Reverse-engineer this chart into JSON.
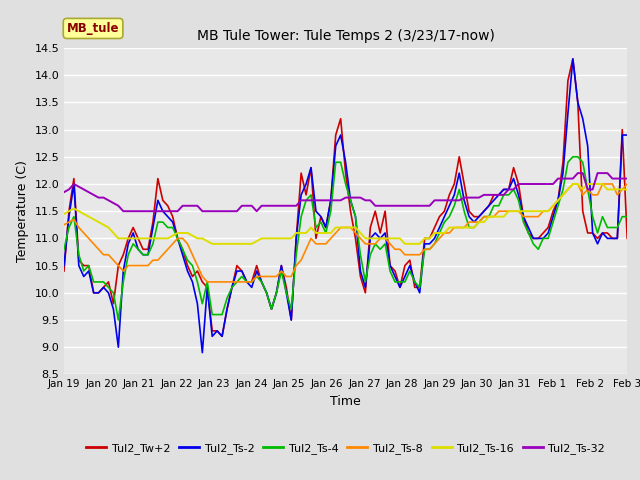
{
  "title": "MB Tule Tower: Tule Temps 2 (3/23/17-now)",
  "xlabel": "Time",
  "ylabel": "Temperature (C)",
  "ylim": [
    8.5,
    14.5
  ],
  "xlim": [
    0,
    15
  ],
  "background_color": "#e0e0e0",
  "plot_bg_color": "#e8e8e8",
  "grid_color": "#ffffff",
  "x_tick_labels": [
    "Jan 19",
    "Jan 20",
    "Jan 21",
    "Jan 22",
    "Jan 23",
    "Jan 24",
    "Jan 25",
    "Jan 26",
    "Jan 27",
    "Jan 28",
    "Jan 29",
    "Jan 30",
    "Jan 31",
    "Feb 1",
    "Feb 2",
    "Feb 3"
  ],
  "legend_label": "MB_tule",
  "series": [
    {
      "name": "Tul2_Tw+2",
      "color": "#cc0000",
      "lw": 1.2,
      "values": [
        10.4,
        11.5,
        12.1,
        10.6,
        10.5,
        10.5,
        10.0,
        10.0,
        10.1,
        10.2,
        9.8,
        10.5,
        10.7,
        11.0,
        11.2,
        11.0,
        10.8,
        10.8,
        11.3,
        12.1,
        11.7,
        11.6,
        11.4,
        11.0,
        10.8,
        10.5,
        10.3,
        10.4,
        10.2,
        10.1,
        9.3,
        9.3,
        9.2,
        9.7,
        10.1,
        10.5,
        10.4,
        10.2,
        10.2,
        10.5,
        10.2,
        10.0,
        9.7,
        10.0,
        10.5,
        10.1,
        9.5,
        11.0,
        12.2,
        11.8,
        12.3,
        11.0,
        11.4,
        11.2,
        11.7,
        12.9,
        13.2,
        12.2,
        11.5,
        11.0,
        10.3,
        10.0,
        11.2,
        11.5,
        11.1,
        11.5,
        10.5,
        10.4,
        10.1,
        10.5,
        10.6,
        10.1,
        10.1,
        11.0,
        11.0,
        11.2,
        11.4,
        11.5,
        11.8,
        12.0,
        12.5,
        12.0,
        11.5,
        11.4,
        11.4,
        11.5,
        11.6,
        11.8,
        11.8,
        11.9,
        11.9,
        12.3,
        12.0,
        11.4,
        11.1,
        11.0,
        11.0,
        11.1,
        11.2,
        11.5,
        11.7,
        12.4,
        13.9,
        14.3,
        13.5,
        11.5,
        11.1,
        11.1,
        11.0,
        11.1,
        11.1,
        11.0,
        11.0,
        13.0,
        11.0
      ]
    },
    {
      "name": "Tul2_Ts-2",
      "color": "#0000ee",
      "lw": 1.2,
      "values": [
        10.5,
        11.4,
        12.0,
        10.5,
        10.3,
        10.4,
        10.0,
        10.0,
        10.1,
        10.0,
        9.7,
        9.0,
        10.4,
        10.9,
        11.1,
        10.8,
        10.7,
        10.7,
        11.2,
        11.7,
        11.5,
        11.4,
        11.3,
        11.0,
        10.7,
        10.4,
        10.2,
        9.8,
        8.9,
        10.1,
        9.2,
        9.3,
        9.2,
        9.7,
        10.1,
        10.4,
        10.4,
        10.2,
        10.1,
        10.4,
        10.2,
        10.0,
        9.7,
        10.0,
        10.5,
        10.0,
        9.5,
        11.0,
        11.8,
        12.0,
        12.3,
        11.5,
        11.4,
        11.2,
        11.7,
        12.7,
        12.9,
        12.4,
        11.7,
        11.4,
        10.4,
        10.1,
        11.0,
        11.1,
        11.0,
        11.1,
        10.5,
        10.3,
        10.1,
        10.3,
        10.5,
        10.2,
        10.0,
        10.9,
        10.9,
        11.0,
        11.2,
        11.4,
        11.6,
        11.8,
        12.2,
        11.7,
        11.4,
        11.3,
        11.4,
        11.5,
        11.6,
        11.7,
        11.8,
        11.9,
        11.9,
        12.1,
        11.8,
        11.4,
        11.2,
        11.0,
        11.0,
        11.0,
        11.1,
        11.4,
        11.7,
        12.2,
        13.3,
        14.3,
        13.5,
        13.2,
        12.7,
        11.1,
        10.9,
        11.1,
        11.0,
        11.0,
        11.0,
        12.9,
        12.9
      ]
    },
    {
      "name": "Tul2_Ts-4",
      "color": "#00bb00",
      "lw": 1.2,
      "values": [
        10.8,
        11.2,
        11.4,
        10.7,
        10.4,
        10.5,
        10.2,
        10.2,
        10.2,
        10.1,
        10.0,
        9.5,
        10.2,
        10.7,
        10.9,
        10.8,
        10.7,
        10.7,
        10.9,
        11.3,
        11.3,
        11.2,
        11.2,
        11.0,
        10.8,
        10.6,
        10.5,
        10.2,
        9.8,
        10.2,
        9.6,
        9.6,
        9.6,
        9.9,
        10.1,
        10.2,
        10.3,
        10.2,
        10.2,
        10.3,
        10.2,
        10.0,
        9.7,
        10.0,
        10.4,
        10.0,
        9.7,
        10.7,
        11.4,
        11.7,
        11.8,
        11.2,
        11.3,
        11.1,
        11.5,
        12.4,
        12.4,
        12.0,
        11.7,
        11.4,
        10.7,
        10.2,
        10.7,
        10.9,
        10.8,
        10.9,
        10.4,
        10.2,
        10.2,
        10.2,
        10.4,
        10.2,
        10.1,
        10.8,
        10.8,
        10.9,
        11.1,
        11.3,
        11.4,
        11.6,
        11.9,
        11.5,
        11.2,
        11.2,
        11.3,
        11.4,
        11.4,
        11.6,
        11.6,
        11.8,
        11.8,
        11.9,
        11.7,
        11.3,
        11.1,
        10.9,
        10.8,
        11.0,
        11.0,
        11.3,
        11.6,
        11.9,
        12.4,
        12.5,
        12.5,
        12.4,
        11.9,
        11.4,
        11.1,
        11.4,
        11.2,
        11.2,
        11.2,
        11.4,
        11.4
      ]
    },
    {
      "name": "Tul2_Ts-8",
      "color": "#ff8800",
      "lw": 1.2,
      "values": [
        11.25,
        11.3,
        11.35,
        11.2,
        11.1,
        11.0,
        10.9,
        10.8,
        10.7,
        10.7,
        10.6,
        10.5,
        10.4,
        10.5,
        10.5,
        10.5,
        10.5,
        10.5,
        10.6,
        10.6,
        10.7,
        10.8,
        10.9,
        11.0,
        11.0,
        10.9,
        10.7,
        10.5,
        10.3,
        10.2,
        10.2,
        10.2,
        10.2,
        10.2,
        10.2,
        10.2,
        10.2,
        10.2,
        10.2,
        10.3,
        10.3,
        10.3,
        10.3,
        10.3,
        10.4,
        10.3,
        10.3,
        10.5,
        10.6,
        10.8,
        11.0,
        10.9,
        10.9,
        10.9,
        11.0,
        11.1,
        11.2,
        11.2,
        11.2,
        11.1,
        11.0,
        10.9,
        10.9,
        10.9,
        11.0,
        11.0,
        10.9,
        10.8,
        10.8,
        10.7,
        10.7,
        10.7,
        10.7,
        10.8,
        10.8,
        10.9,
        11.0,
        11.1,
        11.1,
        11.2,
        11.2,
        11.2,
        11.3,
        11.3,
        11.3,
        11.4,
        11.4,
        11.4,
        11.5,
        11.5,
        11.5,
        11.5,
        11.5,
        11.4,
        11.4,
        11.4,
        11.4,
        11.5,
        11.5,
        11.6,
        11.7,
        11.8,
        11.9,
        12.0,
        12.0,
        11.8,
        11.9,
        11.8,
        11.8,
        12.0,
        12.0,
        12.0,
        11.8,
        11.9,
        12.0
      ]
    },
    {
      "name": "Tul2_Ts-16",
      "color": "#dddd00",
      "lw": 1.4,
      "values": [
        11.45,
        11.5,
        11.55,
        11.5,
        11.45,
        11.4,
        11.35,
        11.3,
        11.25,
        11.2,
        11.1,
        11.0,
        11.0,
        11.0,
        11.0,
        11.0,
        11.0,
        11.0,
        11.0,
        11.0,
        11.0,
        11.0,
        11.05,
        11.1,
        11.1,
        11.1,
        11.05,
        11.0,
        11.0,
        10.95,
        10.9,
        10.9,
        10.9,
        10.9,
        10.9,
        10.9,
        10.9,
        10.9,
        10.9,
        10.95,
        11.0,
        11.0,
        11.0,
        11.0,
        11.0,
        11.0,
        11.0,
        11.1,
        11.1,
        11.1,
        11.2,
        11.1,
        11.1,
        11.1,
        11.1,
        11.2,
        11.2,
        11.2,
        11.2,
        11.2,
        11.1,
        11.0,
        11.0,
        11.0,
        11.0,
        11.0,
        11.0,
        11.0,
        11.0,
        10.9,
        10.9,
        10.9,
        10.9,
        11.0,
        11.0,
        11.1,
        11.1,
        11.1,
        11.2,
        11.2,
        11.2,
        11.2,
        11.2,
        11.2,
        11.3,
        11.3,
        11.4,
        11.4,
        11.4,
        11.4,
        11.5,
        11.5,
        11.5,
        11.5,
        11.5,
        11.5,
        11.5,
        11.5,
        11.5,
        11.6,
        11.7,
        11.8,
        11.9,
        12.0,
        12.0,
        11.9,
        12.0,
        12.0,
        12.0,
        12.0,
        11.9,
        11.9,
        11.9,
        11.9,
        11.9
      ]
    },
    {
      "name": "Tul2_Ts-32",
      "color": "#9900bb",
      "lw": 1.4,
      "values": [
        11.85,
        11.9,
        12.0,
        11.95,
        11.9,
        11.85,
        11.8,
        11.75,
        11.75,
        11.7,
        11.65,
        11.6,
        11.5,
        11.5,
        11.5,
        11.5,
        11.5,
        11.5,
        11.5,
        11.5,
        11.5,
        11.5,
        11.5,
        11.5,
        11.6,
        11.6,
        11.6,
        11.6,
        11.5,
        11.5,
        11.5,
        11.5,
        11.5,
        11.5,
        11.5,
        11.5,
        11.6,
        11.6,
        11.6,
        11.5,
        11.6,
        11.6,
        11.6,
        11.6,
        11.6,
        11.6,
        11.6,
        11.6,
        11.7,
        11.7,
        11.7,
        11.7,
        11.7,
        11.7,
        11.7,
        11.7,
        11.7,
        11.75,
        11.75,
        11.75,
        11.75,
        11.7,
        11.7,
        11.6,
        11.6,
        11.6,
        11.6,
        11.6,
        11.6,
        11.6,
        11.6,
        11.6,
        11.6,
        11.6,
        11.6,
        11.7,
        11.7,
        11.7,
        11.7,
        11.7,
        11.7,
        11.75,
        11.75,
        11.75,
        11.75,
        11.8,
        11.8,
        11.8,
        11.8,
        11.8,
        11.9,
        11.9,
        12.0,
        12.0,
        12.0,
        12.0,
        12.0,
        12.0,
        12.0,
        12.0,
        12.1,
        12.1,
        12.1,
        12.1,
        12.2,
        12.2,
        11.9,
        11.9,
        12.2,
        12.2,
        12.2,
        12.1,
        12.1,
        12.1,
        12.1
      ]
    }
  ]
}
